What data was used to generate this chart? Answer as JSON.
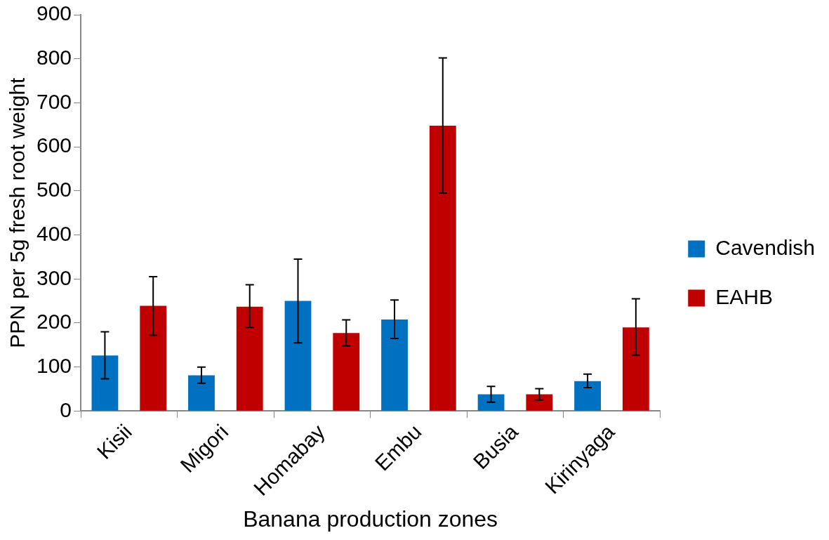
{
  "chart_data": {
    "type": "bar",
    "xlabel": "Banana production zones",
    "ylabel": "PPN per 5g fresh root weight",
    "categories": [
      "Kisii",
      "Migori",
      "Homabay",
      "Embu",
      "Busia",
      "Kirinyaga"
    ],
    "series": [
      {
        "name": "Cavendish",
        "color": "#0070c0",
        "values": [
          126,
          81,
          250,
          208,
          38,
          68
        ],
        "errors": [
          [
            73,
            180
          ],
          [
            63,
            100
          ],
          [
            155,
            345
          ],
          [
            165,
            252
          ],
          [
            20,
            56
          ],
          [
            53,
            84
          ]
        ]
      },
      {
        "name": "EAHB",
        "color": "#c00000",
        "values": [
          239,
          237,
          177,
          648,
          38,
          190
        ],
        "errors": [
          [
            172,
            305
          ],
          [
            190,
            287
          ],
          [
            148,
            207
          ],
          [
            495,
            802
          ],
          [
            25,
            51
          ],
          [
            127,
            255
          ]
        ]
      }
    ],
    "ylim": [
      0,
      900
    ],
    "yticks": [
      0,
      100,
      200,
      300,
      400,
      500,
      600,
      700,
      800,
      900
    ],
    "grid": false,
    "legend": "right"
  }
}
